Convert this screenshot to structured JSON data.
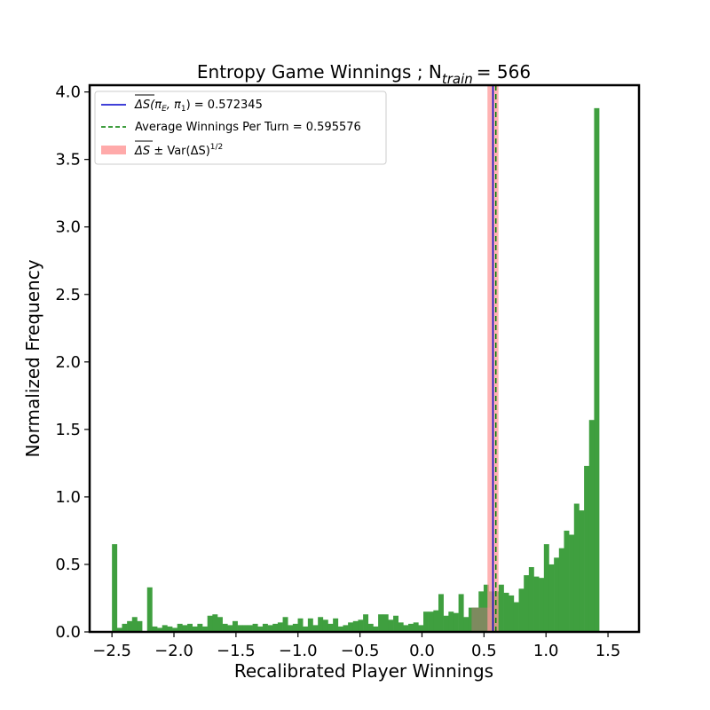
{
  "chart_data": {
    "type": "bar",
    "title": "Entropy Game Winnings ; N",
    "title_subscript": "train",
    "title_value": "=  566",
    "xlabel": "Recalibrated Player Winnings",
    "ylabel": "Normalized Frequency",
    "xlim": [
      -2.68,
      1.75
    ],
    "ylim": [
      0,
      4.05
    ],
    "xticks": [
      -2.5,
      -2.0,
      -1.5,
      -1.0,
      -0.5,
      0.0,
      0.5,
      1.0,
      1.5
    ],
    "xtick_labels": [
      "−2.5",
      "−2.0",
      "−1.5",
      "−1.0",
      "−0.5",
      "0.0",
      "0.5",
      "1.0",
      "1.5"
    ],
    "yticks": [
      0.0,
      0.5,
      1.0,
      1.5,
      2.0,
      2.5,
      3.0,
      3.5,
      4.0
    ],
    "ytick_labels": [
      "0.0",
      "0.5",
      "1.0",
      "1.5",
      "2.0",
      "2.5",
      "3.0",
      "3.5",
      "4.0"
    ],
    "grid": false,
    "legend_position": "top-left",
    "hist_color": "#3f9f3f",
    "bin_start": -2.5,
    "bin_width": 0.0405,
    "values": [
      0.65,
      0.03,
      0.06,
      0.08,
      0.11,
      0.08,
      0.0,
      0.33,
      0.04,
      0.03,
      0.05,
      0.04,
      0.03,
      0.06,
      0.05,
      0.06,
      0.04,
      0.06,
      0.04,
      0.12,
      0.13,
      0.11,
      0.06,
      0.05,
      0.08,
      0.05,
      0.05,
      0.05,
      0.06,
      0.04,
      0.06,
      0.05,
      0.06,
      0.07,
      0.11,
      0.05,
      0.06,
      0.1,
      0.04,
      0.1,
      0.05,
      0.11,
      0.09,
      0.06,
      0.1,
      0.04,
      0.05,
      0.07,
      0.08,
      0.09,
      0.13,
      0.06,
      0.04,
      0.13,
      0.13,
      0.09,
      0.12,
      0.07,
      0.05,
      0.06,
      0.07,
      0.05,
      0.15,
      0.15,
      0.16,
      0.28,
      0.12,
      0.15,
      0.14,
      0.28,
      0.11,
      0.18,
      0.18,
      0.3,
      0.35,
      0.3,
      0.3,
      0.35,
      0.29,
      0.27,
      0.22,
      0.32,
      0.42,
      0.48,
      0.41,
      0.4,
      0.65,
      0.5,
      0.55,
      0.62,
      0.75,
      0.72,
      0.95,
      0.9,
      1.23,
      1.57,
      3.88
    ],
    "overlay_bars": [
      {
        "x_start": 0.4,
        "x_end": 0.56,
        "value": 0.18,
        "color": "#a08070",
        "opacity": 0.65
      }
    ],
    "vlines": [
      {
        "name": "mean_delta_s",
        "x": 0.572345,
        "color": "#0000cc",
        "style": "solid"
      },
      {
        "name": "avg_winnings",
        "x": 0.595576,
        "color": "#007f00",
        "style": "dashed"
      }
    ],
    "band": {
      "x_start": 0.528,
      "x_end": 0.617,
      "color": "#ff9999",
      "opacity": 0.75
    },
    "legend": [
      {
        "label_math": "ΔS",
        "label_args": "(π",
        "label_sub1": "E",
        "label_mid": ", π",
        "label_sub2": "1",
        "label_end": ") = 0.572345",
        "kind": "line",
        "color": "#0000cc"
      },
      {
        "label": "Average Winnings Per Turn  = 0.595576",
        "kind": "dashed",
        "color": "#007f00"
      },
      {
        "label_math": "ΔS",
        "label_rest": " ± Var(ΔS)",
        "label_sup": "1/2",
        "kind": "patch",
        "color": "#ffaaaa"
      }
    ]
  }
}
